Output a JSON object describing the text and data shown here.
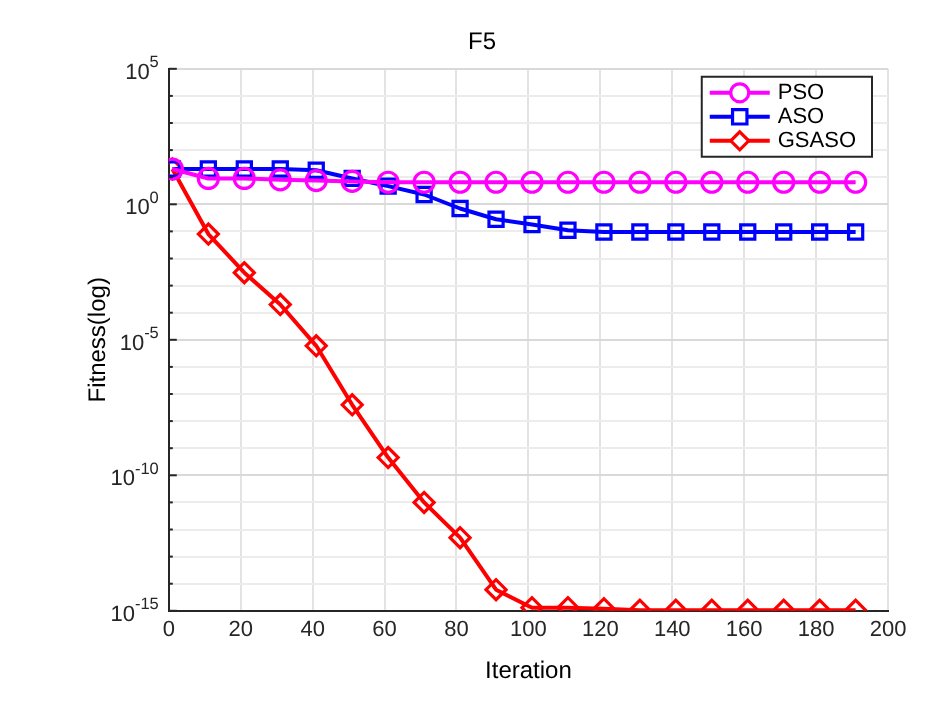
{
  "chart_data": {
    "type": "line",
    "title": "F5",
    "xlabel": "Iteration",
    "ylabel": "Fitness(log)",
    "x": [
      1,
      11,
      21,
      31,
      41,
      51,
      61,
      71,
      81,
      91,
      101,
      111,
      121,
      131,
      141,
      151,
      161,
      171,
      181,
      191
    ],
    "series": [
      {
        "name": "PSO",
        "color": "#ff00ff",
        "marker": "circle",
        "values": [
          20,
          9,
          9,
          8,
          7.5,
          7,
          6.5,
          6.5,
          6.5,
          6.5,
          6.5,
          6.5,
          6.5,
          6.5,
          6.5,
          6.5,
          6.5,
          6.5,
          6.5,
          6.5
        ]
      },
      {
        "name": "ASO",
        "color": "#0000ff",
        "marker": "square",
        "values": [
          20,
          20,
          20,
          20,
          18,
          9,
          4.7,
          2.3,
          0.7,
          0.28,
          0.18,
          0.11,
          0.095,
          0.095,
          0.095,
          0.095,
          0.095,
          0.095,
          0.095,
          0.095
        ]
      },
      {
        "name": "GSASO",
        "color": "#ff0000",
        "marker": "diamond",
        "values": [
          20,
          0.08,
          0.003,
          0.0002,
          6e-06,
          4e-08,
          4.5e-10,
          1e-11,
          5e-13,
          6e-15,
          1.3e-15,
          1.3e-15,
          1.2e-15,
          1.05e-15,
          1.05e-15,
          1.05e-15,
          1.05e-15,
          1.05e-15,
          1.05e-15,
          1.05e-15
        ]
      }
    ],
    "log": "y",
    "grid": true,
    "legend": "top right",
    "line_style": "solid",
    "xlim": [
      0,
      200
    ],
    "xticks": [
      0,
      20,
      40,
      60,
      80,
      100,
      120,
      140,
      160,
      180,
      200
    ],
    "ylim": [
      1e-15,
      100000.0
    ],
    "yticks": [
      {
        "value": 1e-15,
        "label": "10$^{-15}$"
      },
      {
        "value": 1e-14,
        "label": null
      },
      {
        "value": 1e-13,
        "label": null
      },
      {
        "value": 1e-12,
        "label": null
      },
      {
        "value": 1e-11,
        "label": null
      },
      {
        "value": 1e-10,
        "label": "10$^{-10}$"
      },
      {
        "value": 1e-09,
        "label": null
      },
      {
        "value": 1e-08,
        "label": null
      },
      {
        "value": 1e-07,
        "label": null
      },
      {
        "value": 1e-06,
        "label": null
      },
      {
        "value": 1e-05,
        "label": "10$^{-5}$"
      },
      {
        "value": 0.0001,
        "label": null
      },
      {
        "value": 0.001,
        "label": null
      },
      {
        "value": 0.01,
        "label": null
      },
      {
        "value": 0.1,
        "label": null
      },
      {
        "value": 1,
        "label": "10$^{0}$"
      },
      {
        "value": 10,
        "label": null
      },
      {
        "value": 100,
        "label": null
      },
      {
        "value": 1000,
        "label": null
      },
      {
        "value": 10000,
        "label": null
      },
      {
        "value": 100000.0,
        "label": "10$^{5}$"
      }
    ]
  }
}
